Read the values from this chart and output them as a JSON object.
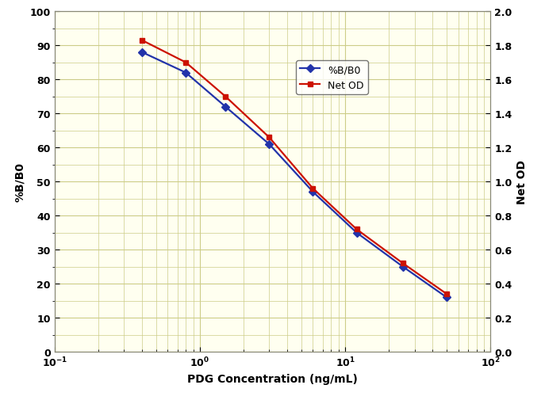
{
  "x": [
    0.4,
    0.8,
    1.5,
    3.0,
    6.0,
    12.0,
    25.0,
    50.0
  ],
  "y_bb0": [
    88,
    82,
    72,
    61,
    47,
    35,
    25,
    16
  ],
  "y_netod_od": [
    1.83,
    1.7,
    1.5,
    1.26,
    0.96,
    0.72,
    0.52,
    0.34
  ],
  "xlabel": "PDG Concentration (ng/mL)",
  "ylabel_left": "%B/B0",
  "ylabel_right": "Net OD",
  "xlim": [
    0.1,
    100
  ],
  "ylim_left": [
    0,
    100
  ],
  "ylim_right": [
    0.0,
    2.0
  ],
  "color_bb0": "#2233AA",
  "color_netod": "#CC1100",
  "bg_color": "#FFFFFF",
  "plot_bg_color": "#FFFFF0",
  "grid_color": "#CCCC88",
  "legend_labels": [
    "%B/B0",
    "Net OD"
  ],
  "marker_bb0": "D",
  "marker_netod": "s",
  "line_width": 1.6,
  "marker_size": 5,
  "tick_fontsize": 9,
  "label_fontsize": 10
}
